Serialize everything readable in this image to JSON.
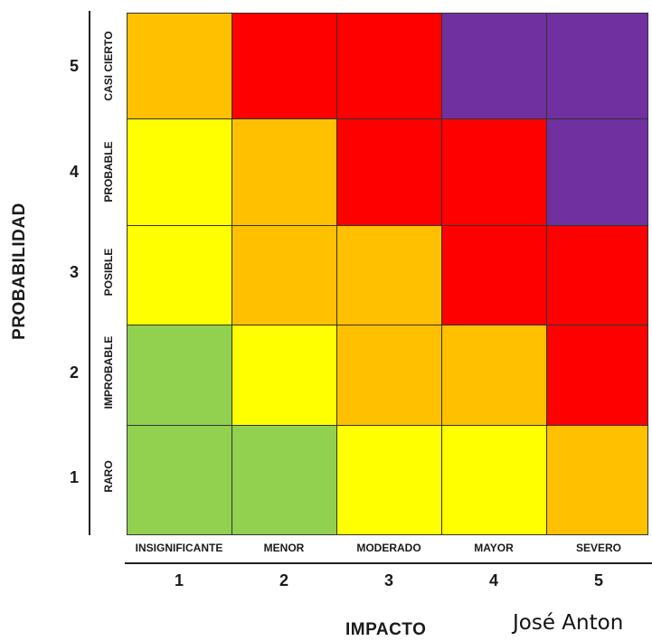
{
  "y_axis": {
    "title": "PROBABILIDAD",
    "rows": [
      {
        "number": "5",
        "label": "CASI CIERTO"
      },
      {
        "number": "4",
        "label": "PROBABLE"
      },
      {
        "number": "3",
        "label": "POSIBLE"
      },
      {
        "number": "2",
        "label": "IMPROBABLE"
      },
      {
        "number": "1",
        "label": "RARO"
      }
    ]
  },
  "x_axis": {
    "title": "IMPACTO",
    "columns": [
      {
        "number": "1",
        "label": "INSIGNIFICANTE"
      },
      {
        "number": "2",
        "label": "MENOR"
      },
      {
        "number": "3",
        "label": "MODERADO"
      },
      {
        "number": "4",
        "label": "MAYOR"
      },
      {
        "number": "5",
        "label": "SEVERO"
      }
    ]
  },
  "colors": {
    "green": "#92d050",
    "yellow": "#ffff00",
    "orange": "#ffc000",
    "red": "#ff0000",
    "purple": "#7030a0"
  },
  "matrix": [
    [
      "orange",
      "red",
      "red",
      "purple",
      "purple"
    ],
    [
      "yellow",
      "orange",
      "red",
      "red",
      "purple"
    ],
    [
      "yellow",
      "orange",
      "orange",
      "red",
      "red"
    ],
    [
      "green",
      "yellow",
      "orange",
      "orange",
      "red"
    ],
    [
      "green",
      "green",
      "yellow",
      "yellow",
      "orange"
    ]
  ],
  "watermark": "José Anton"
}
